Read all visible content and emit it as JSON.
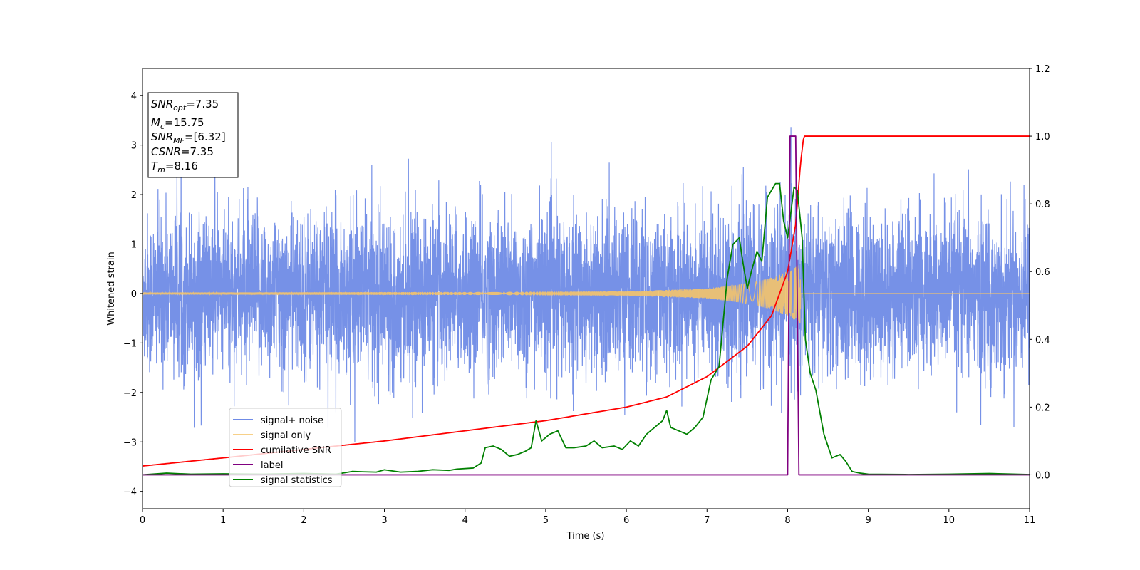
{
  "chart_data": {
    "type": "line",
    "xlabel": "Time (s)",
    "ylabel": "Whitened strain",
    "xlim": [
      0,
      11
    ],
    "ylim_left": [
      -4.35,
      4.55
    ],
    "ylim_right": [
      -0.1,
      1.2
    ],
    "x_ticks": [
      "0",
      "1",
      "2",
      "3",
      "4",
      "5",
      "6",
      "7",
      "8",
      "9",
      "10",
      "11"
    ],
    "y_ticks_left": [
      "−4",
      "−3",
      "−2",
      "−1",
      "0",
      "1",
      "2",
      "3",
      "4"
    ],
    "y_ticks_right": [
      "0.0",
      "0.2",
      "0.4",
      "0.6",
      "0.8",
      "1.0",
      "1.2"
    ],
    "legend": {
      "location": "lower-left",
      "entries": [
        "signal+ noise",
        "signal only",
        "cumilative SNR",
        "label",
        "signal statistics"
      ]
    },
    "annotation": {
      "location": "top-left",
      "lines": [
        {
          "main": "SNR",
          "sub": "opt",
          "value": "=7.35"
        },
        {
          "main": "M",
          "sub": "c",
          "value": "=15.75"
        },
        {
          "main": "SNR",
          "sub": "MF",
          "value": "=[6.32]"
        },
        {
          "main": "CSNR",
          "sub": "",
          "value": "=7.35"
        },
        {
          "main": "T",
          "sub": "m",
          "value": "=8.16"
        }
      ]
    },
    "colors": {
      "signal_noise": "#6f8be6",
      "signal_only": "#f5c46a",
      "cumulative_snr": "#ff0000",
      "label": "#800080",
      "signal_statistics": "#008000"
    },
    "series": [
      {
        "name": "signal+ noise",
        "axis": "left",
        "description_range": [
          -3.9,
          4.15
        ],
        "noise_std": 0.8
      },
      {
        "name": "signal only",
        "axis": "left",
        "envelope": {
          "x": [
            0,
            2,
            4,
            6,
            7,
            7.5,
            7.8,
            8.0,
            8.1,
            8.16
          ],
          "amp": [
            0.02,
            0.025,
            0.03,
            0.045,
            0.1,
            0.2,
            0.32,
            0.45,
            0.55,
            0.6
          ]
        },
        "merger_time": 8.16
      },
      {
        "name": "cumilative SNR",
        "axis": "right",
        "x": [
          0,
          1,
          2,
          3,
          4,
          5,
          6,
          6.5,
          7,
          7.5,
          7.8,
          8.0,
          8.1,
          8.16,
          8.2,
          11
        ],
        "values": [
          0.026,
          0.05,
          0.075,
          0.1,
          0.13,
          0.16,
          0.2,
          0.23,
          0.29,
          0.38,
          0.47,
          0.6,
          0.74,
          0.92,
          1.0,
          1.0
        ]
      },
      {
        "name": "label",
        "axis": "right",
        "x": [
          0,
          8.0,
          8.03,
          8.1,
          8.14,
          8.2,
          11
        ],
        "values": [
          0,
          0,
          1,
          1,
          0,
          0,
          0
        ]
      },
      {
        "name": "signal statistics",
        "axis": "right",
        "x": [
          0,
          0.3,
          0.6,
          1.0,
          1.5,
          2.0,
          2.4,
          2.6,
          2.9,
          3.0,
          3.2,
          3.4,
          3.6,
          3.8,
          3.9,
          4.1,
          4.2,
          4.25,
          4.35,
          4.45,
          4.55,
          4.65,
          4.75,
          4.82,
          4.88,
          4.95,
          5.05,
          5.15,
          5.25,
          5.35,
          5.5,
          5.6,
          5.7,
          5.85,
          5.95,
          6.05,
          6.15,
          6.25,
          6.35,
          6.45,
          6.5,
          6.55,
          6.65,
          6.75,
          6.85,
          6.95,
          7.05,
          7.15,
          7.25,
          7.32,
          7.4,
          7.45,
          7.5,
          7.55,
          7.62,
          7.68,
          7.75,
          7.85,
          7.9,
          7.95,
          8.0,
          8.08,
          8.12,
          8.18,
          8.22,
          8.28,
          8.35,
          8.45,
          8.55,
          8.65,
          8.72,
          8.8,
          8.9,
          9.0,
          9.5,
          10.0,
          10.5,
          11.0
        ],
        "values": [
          0.0,
          0.005,
          0.002,
          0.003,
          0.002,
          0.004,
          0.002,
          0.01,
          0.008,
          0.015,
          0.008,
          0.01,
          0.015,
          0.013,
          0.017,
          0.02,
          0.035,
          0.08,
          0.085,
          0.075,
          0.055,
          0.06,
          0.07,
          0.08,
          0.16,
          0.1,
          0.12,
          0.13,
          0.08,
          0.08,
          0.085,
          0.1,
          0.08,
          0.085,
          0.075,
          0.1,
          0.085,
          0.12,
          0.14,
          0.16,
          0.19,
          0.14,
          0.13,
          0.12,
          0.14,
          0.17,
          0.28,
          0.32,
          0.58,
          0.68,
          0.7,
          0.62,
          0.55,
          0.6,
          0.66,
          0.63,
          0.82,
          0.86,
          0.86,
          0.75,
          0.7,
          0.85,
          0.84,
          0.7,
          0.4,
          0.3,
          0.25,
          0.12,
          0.05,
          0.06,
          0.04,
          0.01,
          0.005,
          0.002,
          0.001,
          0.002,
          0.004,
          0.001
        ]
      }
    ]
  }
}
